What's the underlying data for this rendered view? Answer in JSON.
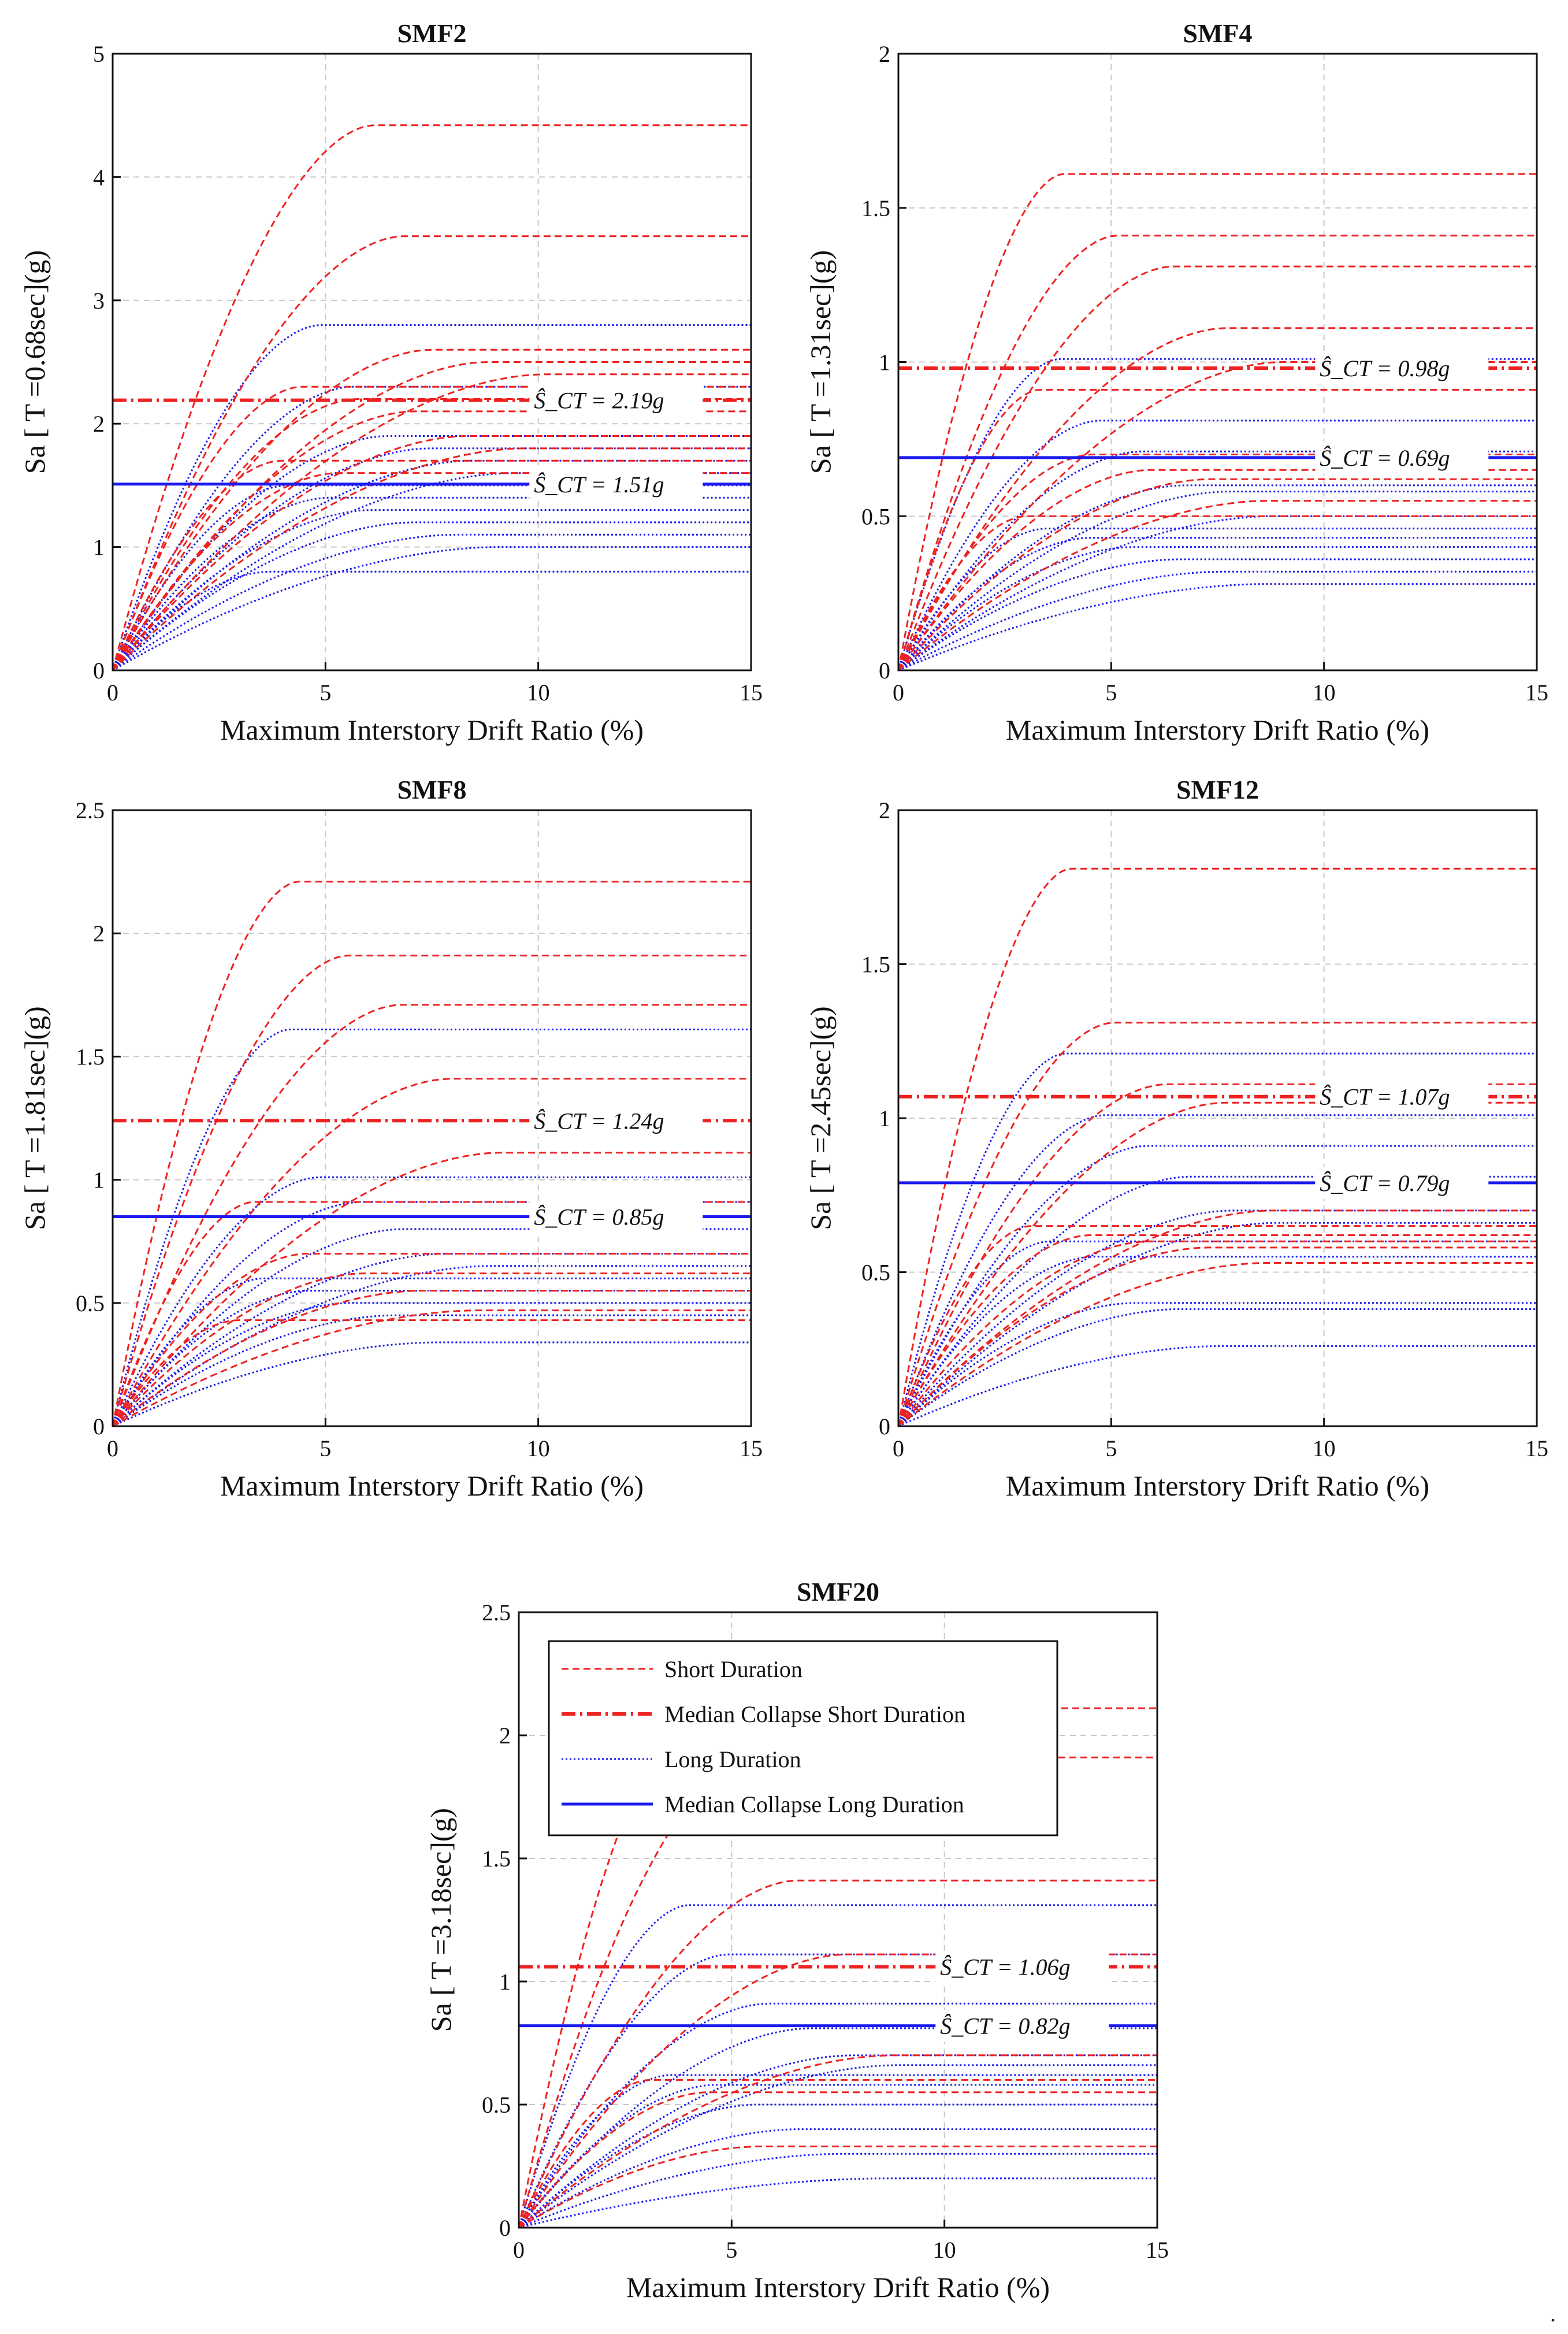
{
  "chart_data": [
    {
      "type": "line",
      "title": "SMF2",
      "xlabel": "Maximum Interstory Drift Ratio (%)",
      "ylabel": "Sa [ T =0.68sec](g)",
      "xlim": [
        0,
        15
      ],
      "ylim": [
        0,
        5
      ],
      "xticks": [
        0,
        5,
        10,
        15
      ],
      "yticks": [
        0,
        1,
        2,
        3,
        4,
        5
      ],
      "grid": true,
      "median_short": 2.19,
      "median_long": 1.51,
      "annotations": [
        "Ŝ_CT = 2.19g",
        "Ŝ_CT = 1.51g"
      ],
      "series": [
        {
          "name": "Short Duration",
          "style": "dashed",
          "color": "#ee2222",
          "plateaus": [
            4.42,
            3.52,
            2.6,
            2.5,
            2.4,
            2.3,
            2.2,
            2.1,
            1.9,
            1.8,
            1.7,
            1.6
          ]
        },
        {
          "name": "Long Duration",
          "style": "dotted",
          "color": "#1a1aee",
          "plateaus": [
            2.8,
            2.3,
            1.9,
            1.8,
            1.7,
            1.6,
            1.5,
            1.4,
            1.3,
            1.2,
            1.1,
            1.0,
            0.8
          ]
        }
      ]
    },
    {
      "type": "line",
      "title": "SMF4",
      "xlabel": "Maximum Interstory Drift Ratio (%)",
      "ylabel": "Sa [ T =1.31sec](g)",
      "xlim": [
        0,
        15
      ],
      "ylim": [
        0,
        2
      ],
      "xticks": [
        0,
        5,
        10,
        15
      ],
      "yticks": [
        0,
        0.5,
        1,
        1.5,
        2
      ],
      "grid": true,
      "median_short": 0.98,
      "median_long": 0.69,
      "annotations": [
        "Ŝ_CT = 0.98g",
        "Ŝ_CT = 0.69g"
      ],
      "series": [
        {
          "name": "Short Duration",
          "style": "dashed",
          "color": "#ee2222",
          "plateaus": [
            1.61,
            1.41,
            1.31,
            1.11,
            1.0,
            0.91,
            0.7,
            0.65,
            0.62,
            0.55,
            0.5
          ]
        },
        {
          "name": "Long Duration",
          "style": "dotted",
          "color": "#1a1aee",
          "plateaus": [
            1.01,
            0.81,
            0.71,
            0.6,
            0.58,
            0.5,
            0.46,
            0.43,
            0.4,
            0.36,
            0.32,
            0.28
          ]
        }
      ]
    },
    {
      "type": "line",
      "title": "SMF8",
      "xlabel": "Maximum Interstory Drift Ratio (%)",
      "ylabel": "Sa [ T =1.81sec](g)",
      "xlim": [
        0,
        15
      ],
      "ylim": [
        0,
        2.5
      ],
      "xticks": [
        0,
        5,
        10,
        15
      ],
      "yticks": [
        0,
        0.5,
        1,
        1.5,
        2,
        2.5
      ],
      "grid": true,
      "median_short": 1.24,
      "median_long": 0.85,
      "annotations": [
        "Ŝ_CT = 1.24g",
        "Ŝ_CT = 0.85g"
      ],
      "series": [
        {
          "name": "Short Duration",
          "style": "dashed",
          "color": "#ee2222",
          "plateaus": [
            2.21,
            1.91,
            1.71,
            1.41,
            1.11,
            0.91,
            0.7,
            0.62,
            0.55,
            0.47,
            0.43
          ]
        },
        {
          "name": "Long Duration",
          "style": "dotted",
          "color": "#1a1aee",
          "plateaus": [
            1.61,
            1.01,
            0.91,
            0.8,
            0.7,
            0.65,
            0.6,
            0.55,
            0.5,
            0.45,
            0.34
          ]
        }
      ]
    },
    {
      "type": "line",
      "title": "SMF12",
      "xlabel": "Maximum Interstory Drift Ratio (%)",
      "ylabel": "Sa [ T =2.45sec](g)",
      "xlim": [
        0,
        15
      ],
      "ylim": [
        0,
        2
      ],
      "xticks": [
        0,
        5,
        10,
        15
      ],
      "yticks": [
        0,
        0.5,
        1,
        1.5,
        2
      ],
      "grid": true,
      "median_short": 1.07,
      "median_long": 0.79,
      "annotations": [
        "Ŝ_CT = 1.07g",
        "Ŝ_CT = 0.79g"
      ],
      "series": [
        {
          "name": "Short Duration",
          "style": "dashed",
          "color": "#ee2222",
          "plateaus": [
            1.81,
            1.31,
            1.11,
            1.05,
            0.7,
            0.65,
            0.62,
            0.6,
            0.58,
            0.53
          ]
        },
        {
          "name": "Long Duration",
          "style": "dotted",
          "color": "#1a1aee",
          "plateaus": [
            1.21,
            1.01,
            0.91,
            0.81,
            0.7,
            0.66,
            0.6,
            0.55,
            0.4,
            0.38,
            0.26
          ]
        }
      ]
    },
    {
      "type": "line",
      "title": "SMF20",
      "xlabel": "Maximum Interstory Drift Ratio (%)",
      "ylabel": "Sa [ T =3.18sec](g)",
      "xlim": [
        0,
        15
      ],
      "ylim": [
        0,
        2.5
      ],
      "xticks": [
        0,
        5,
        10,
        15
      ],
      "yticks": [
        0,
        0.5,
        1,
        1.5,
        2,
        2.5
      ],
      "grid": true,
      "median_short": 1.06,
      "median_long": 0.82,
      "annotations": [
        "Ŝ_CT = 1.06g",
        "Ŝ_CT = 0.82g"
      ],
      "legend": {
        "location": "top-left",
        "entries": [
          "Short Duration",
          "Median Collapse Short Duration",
          "Long Duration",
          "Median Collapse Long Duration"
        ]
      },
      "series": [
        {
          "name": "Short Duration",
          "style": "dashed",
          "color": "#ee2222",
          "plateaus": [
            2.11,
            1.91,
            1.41,
            1.11,
            0.7,
            0.6,
            0.55,
            0.33
          ]
        },
        {
          "name": "Long Duration",
          "style": "dotted",
          "color": "#1a1aee",
          "plateaus": [
            1.31,
            1.11,
            0.91,
            0.81,
            0.7,
            0.66,
            0.62,
            0.58,
            0.5,
            0.4,
            0.3,
            0.2
          ]
        }
      ]
    }
  ],
  "trailing_mark": "."
}
